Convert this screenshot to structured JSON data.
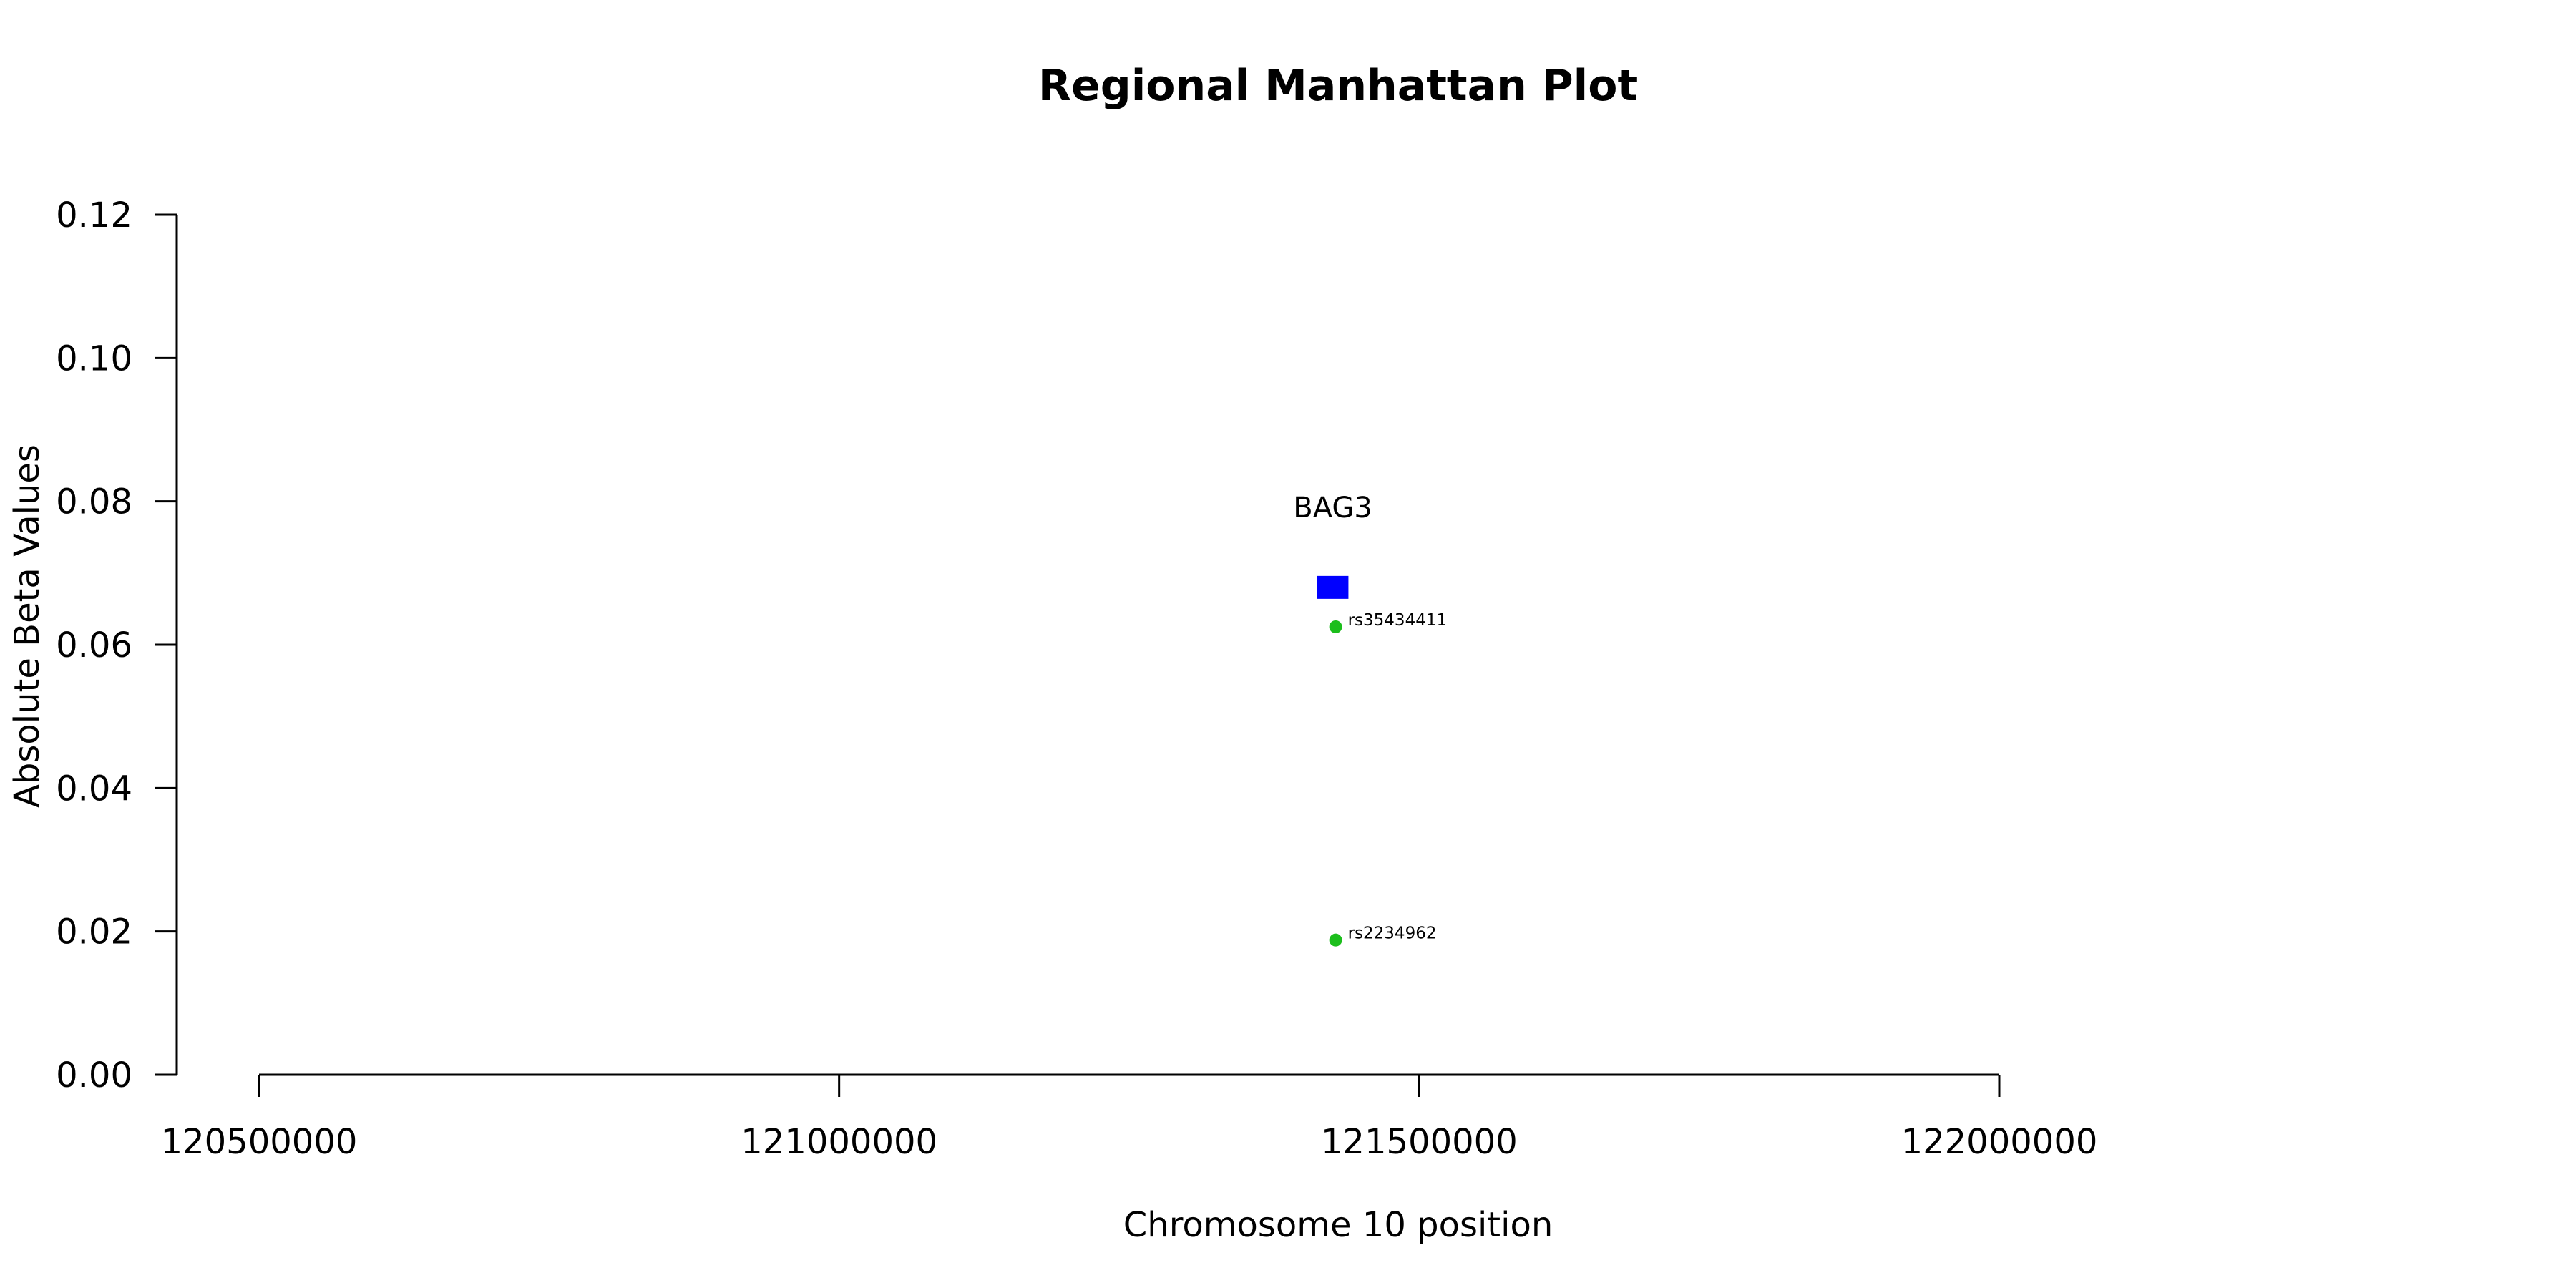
{
  "chart_data": {
    "type": "scatter",
    "title": "Regional Manhattan Plot",
    "xlabel": "Chromosome 10 position",
    "ylabel": "Absolute Beta Values",
    "xlim": [
      120500000,
      122000000
    ],
    "ylim": [
      0,
      0.12
    ],
    "x_ticks": [
      120500000,
      121000000,
      121500000,
      122000000
    ],
    "x_tick_labels": [
      "120500000",
      "121000000",
      "121500000",
      "122000000"
    ],
    "y_ticks": [
      0,
      0.02,
      0.04,
      0.06,
      0.08,
      0.1,
      0.12
    ],
    "y_tick_labels": [
      "0.00",
      "0.02",
      "0.04",
      "0.06",
      "0.08",
      "0.10",
      "0.12"
    ],
    "grid": false,
    "points": [
      {
        "x": 121428000,
        "y": 0.0625,
        "label": "rs35434411",
        "color": "#1cbe1c"
      },
      {
        "x": 121428000,
        "y": 0.0188,
        "label": "rs2234962",
        "color": "#1cbe1c"
      }
    ],
    "genes": [
      {
        "name": "BAG3",
        "start": 121412000,
        "end": 121439000,
        "y": 0.068,
        "color": "#0000ff"
      }
    ]
  }
}
